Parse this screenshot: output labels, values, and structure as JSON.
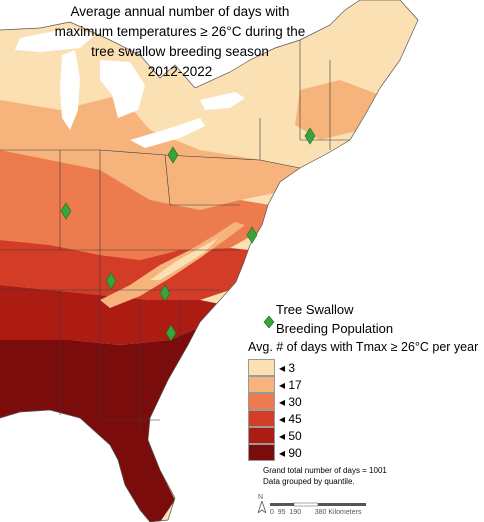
{
  "title": {
    "line1": "Average annual number of days with",
    "line2": "maximum temperatures ≥ 26°C during the",
    "line3": "tree swallow breeding season",
    "line4": "2012-2022"
  },
  "legend": {
    "symbol_line1": "Tree Swallow",
    "symbol_line2": "Breeding Population",
    "symbol_color": "#3aa33a",
    "avg_label": "Avg. # of days with Tmax ≥ 26°C per year",
    "classes": [
      {
        "label": "3",
        "color": "#fbe0b3"
      },
      {
        "label": "17",
        "color": "#f6b47c"
      },
      {
        "label": "30",
        "color": "#ec7c4e"
      },
      {
        "label": "45",
        "color": "#d33d27"
      },
      {
        "label": "50",
        "color": "#ac1c12"
      },
      {
        "label": "90",
        "color": "#7a0c0c"
      }
    ]
  },
  "notes": {
    "grand_total": "Grand total number of days = 1001",
    "grouping": "Data grouped by quantile."
  },
  "scale_bar": {
    "label": "0  95  190       380 Kilometers"
  },
  "north_arrow": {
    "label": "N"
  }
}
